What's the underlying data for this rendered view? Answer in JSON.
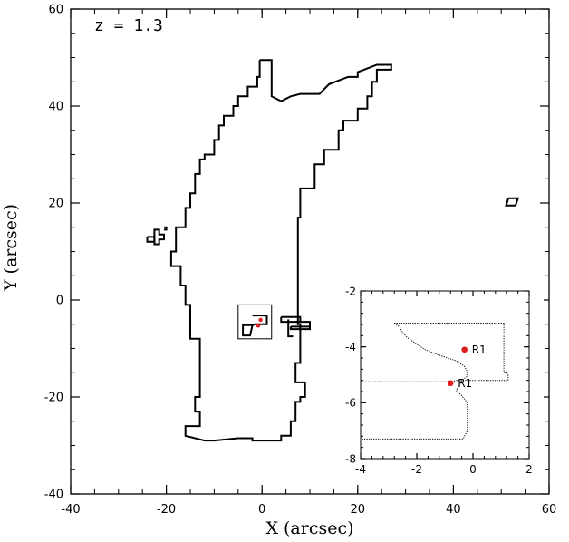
{
  "chart_data": [
    {
      "type": "line",
      "annotation": "z = 1.3",
      "xlabel": "X (arcsec)",
      "ylabel": "Y (arcsec)",
      "xlim": [
        -40,
        60
      ],
      "ylim": [
        -40,
        60
      ],
      "xticks": [
        "-40",
        "-20",
        "0",
        "20",
        "40",
        "60"
      ],
      "yticks": [
        "-40",
        "-20",
        "0",
        "20",
        "40",
        "60"
      ],
      "series": [
        {
          "points": [
            [
              -0.5,
              49.5
            ],
            [
              2.0,
              49.5
            ],
            [
              2.0,
              42.0
            ],
            [
              4.0,
              41.0
            ],
            [
              6.0,
              42.0
            ],
            [
              8.0,
              42.5
            ],
            [
              12.0,
              42.5
            ],
            [
              14.0,
              44.5
            ],
            [
              18.0,
              46.0
            ],
            [
              20.0,
              46.0
            ],
            [
              20.0,
              47.0
            ],
            [
              24.0,
              48.5
            ],
            [
              27.0,
              48.5
            ],
            [
              27.0,
              47.5
            ],
            [
              24.0,
              47.5
            ],
            [
              24.0,
              45.0
            ],
            [
              23.0,
              45.0
            ],
            [
              23.0,
              42.0
            ],
            [
              22.0,
              42.0
            ],
            [
              22.0,
              39.5
            ],
            [
              20.0,
              39.5
            ],
            [
              20.0,
              37.0
            ],
            [
              17.0,
              37.0
            ],
            [
              17.0,
              35.0
            ],
            [
              16.0,
              35.0
            ],
            [
              16.0,
              31.0
            ],
            [
              13.0,
              31.0
            ],
            [
              13.0,
              28.0
            ],
            [
              11.0,
              28.0
            ],
            [
              11.0,
              23.0
            ],
            [
              8.0,
              23.0
            ],
            [
              8.0,
              17.0
            ],
            [
              7.5,
              17.0
            ],
            [
              7.5,
              -5.0
            ],
            [
              8.0,
              -5.0
            ],
            [
              8.0,
              -13.0
            ],
            [
              7.0,
              -13.0
            ],
            [
              7.0,
              -17.0
            ],
            [
              9.0,
              -17.0
            ],
            [
              9.0,
              -20.0
            ],
            [
              8.0,
              -20.0
            ],
            [
              8.0,
              -21.0
            ],
            [
              7.0,
              -21.0
            ],
            [
              7.0,
              -25.0
            ],
            [
              6.0,
              -25.0
            ],
            [
              6.0,
              -28.0
            ],
            [
              4.0,
              -28.0
            ],
            [
              4.0,
              -29.0
            ],
            [
              -2.0,
              -29.0
            ],
            [
              -2.0,
              -28.5
            ],
            [
              -5.0,
              -28.5
            ],
            [
              -10.0,
              -29.0
            ],
            [
              -12.0,
              -29.0
            ],
            [
              -16.0,
              -28.0
            ],
            [
              -16.0,
              -26.0
            ],
            [
              -13.0,
              -26.0
            ],
            [
              -13.0,
              -23.0
            ],
            [
              -14.0,
              -23.0
            ],
            [
              -14.0,
              -20.0
            ],
            [
              -13.0,
              -20.0
            ],
            [
              -13.0,
              -8.0
            ],
            [
              -15.0,
              -8.0
            ],
            [
              -15.0,
              -1.0
            ],
            [
              -16.0,
              -1.0
            ],
            [
              -16.0,
              3.0
            ],
            [
              -17.0,
              3.0
            ],
            [
              -17.0,
              7.0
            ],
            [
              -19.0,
              7.0
            ],
            [
              -19.0,
              10.0
            ],
            [
              -18.0,
              10.0
            ],
            [
              -18.0,
              15.0
            ],
            [
              -16.0,
              15.0
            ],
            [
              -16.0,
              19.0
            ],
            [
              -15.0,
              19.0
            ],
            [
              -15.0,
              22.0
            ],
            [
              -14.0,
              22.0
            ],
            [
              -14.0,
              26.0
            ],
            [
              -13.0,
              26.0
            ],
            [
              -13.0,
              29.0
            ],
            [
              -12.0,
              29.0
            ],
            [
              -12.0,
              30.0
            ],
            [
              -10.0,
              30.0
            ],
            [
              -10.0,
              33.0
            ],
            [
              -9.0,
              33.0
            ],
            [
              -9.0,
              36.0
            ],
            [
              -8.0,
              36.0
            ],
            [
              -8.0,
              38.0
            ],
            [
              -6.0,
              38.0
            ],
            [
              -6.0,
              40.0
            ],
            [
              -5.0,
              40.0
            ],
            [
              -5.0,
              42.0
            ],
            [
              -3.0,
              42.0
            ],
            [
              -3.0,
              44.0
            ],
            [
              -1.0,
              44.0
            ],
            [
              -1.0,
              46.0
            ],
            [
              -0.5,
              46.0
            ],
            [
              -0.5,
              49.5
            ]
          ]
        },
        {
          "points": [
            [
              -22.5,
              13.5
            ],
            [
              -22.5,
              14.5
            ],
            [
              -21.5,
              14.5
            ],
            [
              -21.5,
              13.5
            ],
            [
              -20.5,
              13.5
            ],
            [
              -20.5,
              12.5
            ],
            [
              -21.5,
              12.5
            ],
            [
              -21.5,
              11.5
            ],
            [
              -22.5,
              11.5
            ],
            [
              -22.5,
              13.5
            ]
          ]
        },
        {
          "points": [
            [
              -24.0,
              13.0
            ],
            [
              -22.5,
              13.0
            ],
            [
              -22.5,
              12.0
            ],
            [
              -24.0,
              12.0
            ],
            [
              -24.0,
              13.0
            ]
          ]
        },
        {
          "points": [
            [
              -20.5,
              15.0
            ],
            [
              -20.0,
              15.0
            ],
            [
              -20.0,
              14.5
            ],
            [
              -20.5,
              14.5
            ]
          ]
        },
        {
          "points": [
            [
              -2.0,
              -3.2
            ],
            [
              1.0,
              -3.2
            ],
            [
              1.0,
              -5.0
            ],
            [
              -1.5,
              -5.0
            ],
            [
              -2.0,
              -5.2
            ],
            [
              -2.5,
              -7.3
            ],
            [
              -4.0,
              -7.3
            ],
            [
              -4.0,
              -5.2
            ],
            [
              -2.0,
              -5.2
            ]
          ]
        },
        {
          "points": [
            [
              4.0,
              -3.5
            ],
            [
              8.0,
              -3.5
            ],
            [
              8.0,
              -4.5
            ],
            [
              4.0,
              -4.5
            ],
            [
              4.0,
              -3.5
            ]
          ]
        },
        {
          "points": [
            [
              6.0,
              -5.5
            ],
            [
              10.0,
              -5.5
            ],
            [
              10.0,
              -6.0
            ],
            [
              6.0,
              -6.0
            ],
            [
              6.0,
              -5.5
            ]
          ]
        },
        {
          "points": [
            [
              5.5,
              -4.0
            ],
            [
              5.5,
              -7.5
            ],
            [
              6.5,
              -7.5
            ]
          ]
        },
        {
          "points": [
            [
              7.0,
              -4.5
            ],
            [
              10.0,
              -4.5
            ],
            [
              10.0,
              -5.5
            ]
          ]
        },
        {
          "points": [
            [
              51.5,
              21.0
            ],
            [
              53.5,
              21.0
            ],
            [
              53.0,
              19.5
            ],
            [
              51.0,
              19.5
            ],
            [
              51.5,
              21.0
            ]
          ]
        }
      ],
      "red_points": [
        [
          -0.3,
          -4.1
        ],
        [
          -0.8,
          -5.3
        ]
      ],
      "box": {
        "x": [
          -5,
          2
        ],
        "y": [
          -8,
          -1
        ]
      }
    },
    {
      "type": "line",
      "inset": true,
      "xlim": [
        -4,
        2
      ],
      "ylim": [
        -8,
        -2
      ],
      "xticks": [
        "-4",
        "-2",
        "0",
        "2"
      ],
      "yticks": [
        "-8",
        "-6",
        "-4",
        "-2"
      ],
      "series": [
        {
          "style": "dotted",
          "points": [
            [
              -2.8,
              -3.15
            ],
            [
              -2.6,
              -3.3
            ],
            [
              -2.5,
              -3.5
            ],
            [
              -2.3,
              -3.7
            ],
            [
              -2.0,
              -3.9
            ],
            [
              -1.7,
              -4.1
            ],
            [
              -1.2,
              -4.3
            ],
            [
              -0.6,
              -4.5
            ],
            [
              -0.3,
              -4.7
            ],
            [
              -0.2,
              -4.9
            ],
            [
              -0.2,
              -5.05
            ],
            [
              -0.4,
              -5.2
            ],
            [
              -0.5,
              -5.4
            ],
            [
              -0.6,
              -5.55
            ],
            [
              -0.4,
              -5.75
            ],
            [
              -0.2,
              -6.0
            ],
            [
              -0.2,
              -6.5
            ],
            [
              -0.2,
              -7.0
            ],
            [
              -0.35,
              -7.3
            ],
            [
              -4.0,
              -7.3
            ]
          ]
        },
        {
          "style": "dotted",
          "points": [
            [
              -2.8,
              -3.15
            ],
            [
              1.1,
              -3.15
            ],
            [
              1.1,
              -4.9
            ],
            [
              1.25,
              -4.9
            ],
            [
              1.25,
              -5.2
            ],
            [
              -0.6,
              -5.2
            ],
            [
              -0.75,
              -5.25
            ],
            [
              -4.0,
              -5.25
            ]
          ]
        }
      ],
      "points": [
        {
          "x": -0.3,
          "y": -4.1,
          "label": "R1"
        },
        {
          "x": -0.8,
          "y": -5.3,
          "label": "R1"
        }
      ]
    }
  ]
}
